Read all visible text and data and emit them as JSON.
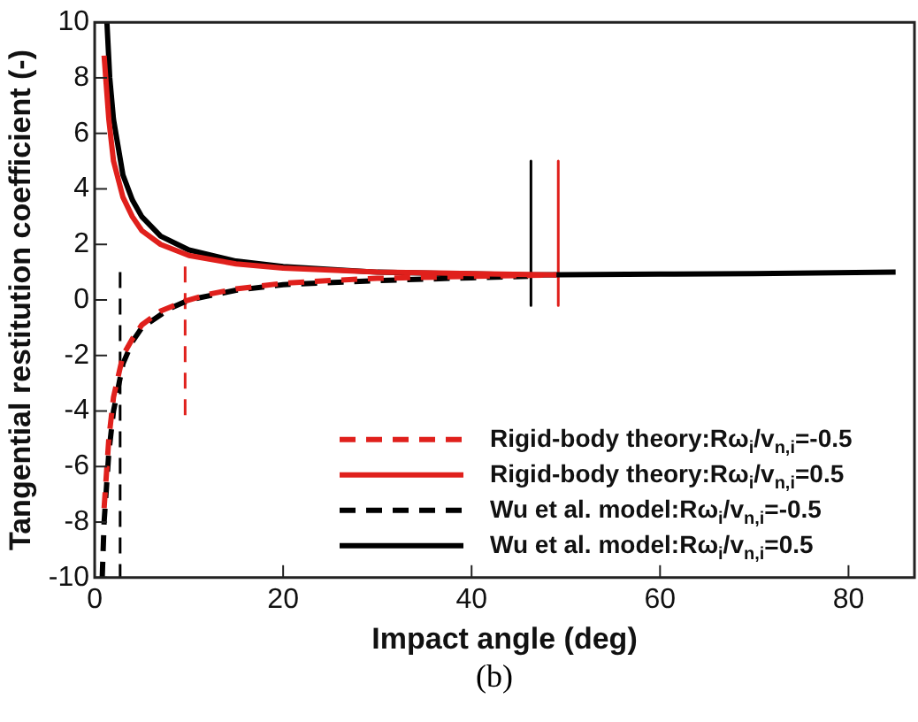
{
  "chart_data": {
    "type": "line",
    "xlabel": "Impact angle (deg)",
    "ylabel": "Tangential restitution coefficient (-)",
    "xlim": [
      0,
      87
    ],
    "ylim": [
      -10,
      10
    ],
    "xticks": [
      0,
      20,
      40,
      60,
      80
    ],
    "yticks": [
      -10,
      -8,
      -6,
      -4,
      -2,
      0,
      2,
      4,
      6,
      8,
      10
    ],
    "grid": false,
    "legend": "bottom right",
    "marker": "none",
    "annotations": [
      "(b)"
    ],
    "series": [
      {
        "name": "Rigid-body theory:Rω$_{i}$/v$_{n,i}$=-0.5",
        "color": "#e0201c",
        "line_style": "dashed",
        "x": [
          1,
          1.5,
          2,
          3,
          4,
          5,
          7,
          9.5,
          12,
          15,
          20,
          25,
          30,
          40,
          49
        ],
        "values": [
          -7.5,
          -5,
          -3.5,
          -2,
          -1.4,
          -0.9,
          -0.4,
          -0.05,
          0.2,
          0.4,
          0.6,
          0.7,
          0.78,
          0.85,
          0.9
        ]
      },
      {
        "name": "Rigid-body theory:Rω$_{i}$/v$_{n,i}$=0.5",
        "color": "#e0201c",
        "line_style": "solid",
        "x": [
          1,
          1.5,
          2,
          3,
          4,
          5,
          7,
          10,
          15,
          20,
          30,
          40,
          49
        ],
        "values": [
          8.8,
          6.5,
          5,
          3.7,
          3,
          2.5,
          2,
          1.6,
          1.3,
          1.15,
          1,
          0.95,
          0.9
        ]
      },
      {
        "name": "Wu et al. model:Rω$_{i}$/v$_{n,i}$=-0.5",
        "color": "#000000",
        "line_style": "dashed",
        "x": [
          0.8,
          1,
          1.5,
          2,
          3,
          4,
          5,
          8,
          10,
          15,
          20,
          30,
          40,
          46
        ],
        "values": [
          -10,
          -8,
          -5.5,
          -4,
          -2.3,
          -1.5,
          -1,
          -0.3,
          0,
          0.35,
          0.55,
          0.7,
          0.8,
          0.85
        ]
      },
      {
        "name": "Wu et al. model:Rω$_{i}$/v$_{n,i}$=0.5",
        "color": "#000000",
        "line_style": "solid",
        "x": [
          1.3,
          1.6,
          2,
          3,
          4,
          5,
          7,
          10,
          15,
          20,
          30,
          46,
          60,
          70,
          85
        ],
        "values": [
          10,
          8,
          6.5,
          4.5,
          3.6,
          3,
          2.3,
          1.8,
          1.4,
          1.2,
          1,
          0.9,
          0.93,
          0.95,
          1
        ]
      },
      {
        "color": "#000000",
        "line_style": "dashed",
        "x": [
          2.7,
          2.7
        ],
        "values": [
          1,
          -10
        ]
      },
      {
        "color": "#e0201c",
        "line_style": "dashed",
        "x": [
          9.6,
          9.6
        ],
        "values": [
          1.2,
          -4.2
        ]
      },
      {
        "color": "#000000",
        "line_style": "solid",
        "x": [
          46.3,
          46.3
        ],
        "values": [
          5,
          -0.2
        ]
      },
      {
        "color": "#e0201c",
        "line_style": "solid",
        "x": [
          49.2,
          49.2
        ],
        "values": [
          5,
          -0.2
        ]
      }
    ]
  }
}
